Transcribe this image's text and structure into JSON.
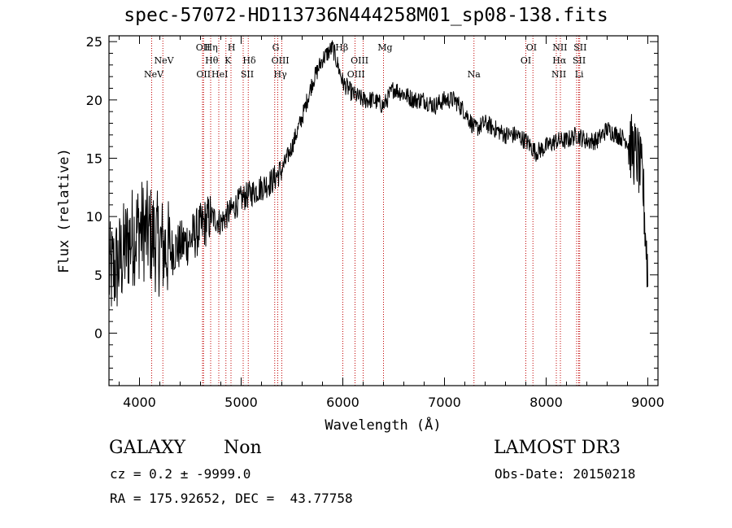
{
  "chart_data": {
    "type": "line",
    "title": "spec-57072-HD113736N444258M01_sp08-138.fits",
    "xlabel": "Wavelength (Å)",
    "ylabel": "Flux (relative)",
    "xlim": [
      3700,
      9100
    ],
    "ylim": [
      -4.5,
      25.5
    ],
    "xticks": [
      4000,
      5000,
      6000,
      7000,
      8000,
      9000
    ],
    "yticks": [
      0,
      5,
      10,
      15,
      20,
      25
    ],
    "series": [
      {
        "name": "spectrum",
        "x": [
          3700,
          3800,
          3900,
          4000,
          4100,
          4200,
          4300,
          4400,
          4500,
          4600,
          4700,
          4800,
          4900,
          5000,
          5100,
          5200,
          5300,
          5400,
          5500,
          5600,
          5700,
          5800,
          5900,
          5950,
          6000,
          6100,
          6200,
          6300,
          6400,
          6500,
          6600,
          6700,
          6800,
          6900,
          7000,
          7100,
          7200,
          7300,
          7400,
          7500,
          7600,
          7700,
          7800,
          7900,
          8000,
          8100,
          8200,
          8300,
          8400,
          8500,
          8600,
          8700,
          8800,
          8900,
          8950,
          9000
        ],
        "y": [
          5,
          6,
          8,
          9,
          8.5,
          7.5,
          7,
          7.5,
          8,
          9,
          10,
          9.5,
          10.5,
          11.5,
          12,
          12.5,
          13,
          14,
          16,
          18.5,
          21.5,
          23.5,
          24.5,
          23,
          21.5,
          20.5,
          20,
          20,
          19.5,
          21,
          20.5,
          20,
          20,
          19.5,
          20,
          20,
          19,
          17.5,
          18,
          17.5,
          17,
          17,
          16.5,
          15.5,
          16,
          16.5,
          16.5,
          17,
          16.5,
          16.5,
          17.5,
          17,
          16.5,
          15,
          13,
          5
        ]
      }
    ],
    "line_labels": [
      {
        "label": "NeV",
        "x": 4140,
        "row": 3
      },
      {
        "label": "NeV",
        "x": 4240,
        "row": 2
      },
      {
        "label": "OII",
        "x": 4625,
        "row": 1
      },
      {
        "label": "OII",
        "x": 4630,
        "row": 3
      },
      {
        "label": "Hη",
        "x": 4705,
        "row": 1
      },
      {
        "label": "Hθ",
        "x": 4710,
        "row": 2
      },
      {
        "label": "HeI",
        "x": 4790,
        "row": 3
      },
      {
        "label": "H",
        "x": 4905,
        "row": 1
      },
      {
        "label": "K",
        "x": 4870,
        "row": 2
      },
      {
        "label": "Hδ",
        "x": 5080,
        "row": 2
      },
      {
        "label": "SII",
        "x": 5060,
        "row": 3
      },
      {
        "label": "G",
        "x": 5340,
        "row": 1
      },
      {
        "label": "OIII",
        "x": 5385,
        "row": 2
      },
      {
        "label": "Hγ",
        "x": 5385,
        "row": 3
      },
      {
        "label": "Hβ",
        "x": 5990,
        "row": 1
      },
      {
        "label": "OIII",
        "x": 6165,
        "row": 2
      },
      {
        "label": "OIII",
        "x": 6130,
        "row": 3
      },
      {
        "label": "Mg",
        "x": 6415,
        "row": 1
      },
      {
        "label": "Na",
        "x": 7290,
        "row": 3
      },
      {
        "label": "OI",
        "x": 7855,
        "row": 1
      },
      {
        "label": "OI",
        "x": 7800,
        "row": 2
      },
      {
        "label": "NII",
        "x": 8135,
        "row": 1
      },
      {
        "label": "Hα",
        "x": 8130,
        "row": 2
      },
      {
        "label": "NII",
        "x": 8125,
        "row": 3
      },
      {
        "label": "SII",
        "x": 8335,
        "row": 1
      },
      {
        "label": "SII",
        "x": 8325,
        "row": 2
      },
      {
        "label": "Li",
        "x": 8325,
        "row": 3
      }
    ],
    "line_markers": [
      4120,
      4230,
      4620,
      4630,
      4700,
      4780,
      4850,
      4900,
      5020,
      5070,
      5330,
      5360,
      5400,
      6000,
      6120,
      6200,
      6400,
      7290,
      7800,
      7870,
      8100,
      8140,
      8300,
      8320,
      8330
    ]
  },
  "info": {
    "class": "GALAXY",
    "subclass": "Non",
    "survey": "LAMOST DR3",
    "cz": "cz = 0.2 ± -9999.0",
    "obs_date": "Obs-Date: 20150218",
    "coords": "RA = 175.92652, DEC =  43.77758"
  }
}
